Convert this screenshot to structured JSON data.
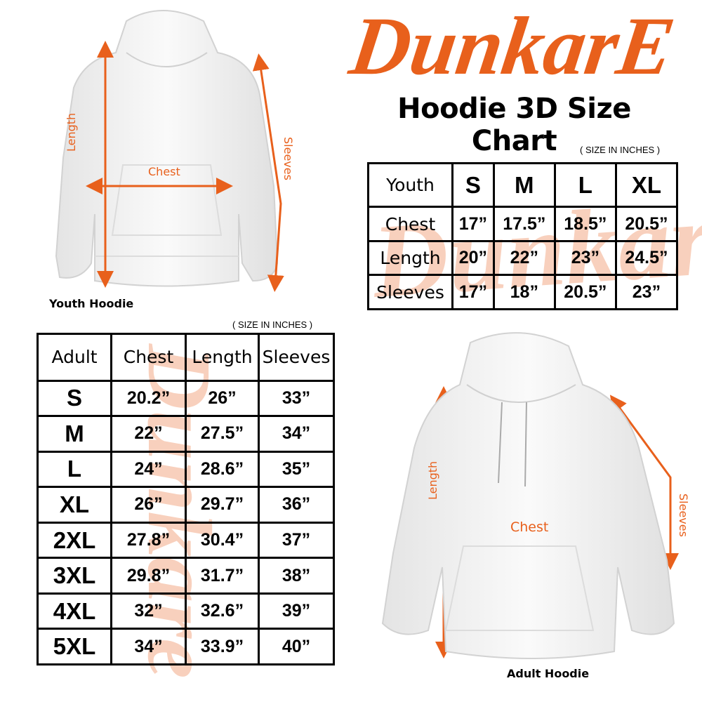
{
  "brand": {
    "logo_text": "DunkarE",
    "color": "#e8601c",
    "watermark_color": "#f5b89a"
  },
  "title": "Hoodie 3D Size Chart",
  "youth": {
    "unit_note": "( SIZE IN INCHES )",
    "header": [
      "Youth",
      "S",
      "M",
      "L",
      "XL"
    ],
    "rows": [
      {
        "label": "Chest",
        "values": [
          "17”",
          "17.5”",
          "18.5”",
          "20.5”"
        ]
      },
      {
        "label": "Length",
        "values": [
          "20”",
          "22”",
          "23”",
          "24.5”"
        ]
      },
      {
        "label": "Sleeves",
        "values": [
          "17”",
          "18”",
          "20.5”",
          "23”"
        ]
      }
    ],
    "image_caption": "Youth Hoodie",
    "measure_labels": {
      "length": "Length",
      "chest": "Chest",
      "sleeves": "Sleeves"
    }
  },
  "adult": {
    "unit_note": "( SIZE IN INCHES )",
    "header": [
      "Adult",
      "Chest",
      "Length",
      "Sleeves"
    ],
    "rows": [
      {
        "size": "S",
        "values": [
          "20.2”",
          "26”",
          "33”"
        ]
      },
      {
        "size": "M",
        "values": [
          "22”",
          "27.5”",
          "34”"
        ]
      },
      {
        "size": "L",
        "values": [
          "24”",
          "28.6”",
          "35”"
        ]
      },
      {
        "size": "XL",
        "values": [
          "26”",
          "29.7”",
          "36”"
        ]
      },
      {
        "size": "2XL",
        "values": [
          "27.8”",
          "30.4”",
          "37”"
        ]
      },
      {
        "size": "3XL",
        "values": [
          "29.8”",
          "31.7”",
          "38”"
        ]
      },
      {
        "size": "4XL",
        "values": [
          "32”",
          "32.6”",
          "39”"
        ]
      },
      {
        "size": "5XL",
        "values": [
          "34”",
          "33.9”",
          "40”"
        ]
      }
    ],
    "image_caption": "Adult Hoodie",
    "measure_labels": {
      "length": "Length",
      "chest": "Chest",
      "sleeves": "Sleeves"
    }
  }
}
